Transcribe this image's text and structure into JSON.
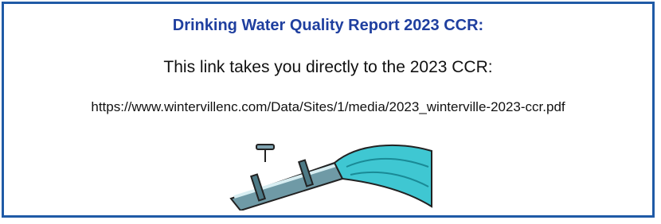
{
  "header": {
    "title": "Drinking Water Quality Report 2023 CCR:"
  },
  "body": {
    "intro": "This link takes you directly to the 2023 CCR:",
    "link": "https://www.wintervillenc.com/Data/Sites/1/media/2023_winterville-2023-ccr.pdf"
  }
}
